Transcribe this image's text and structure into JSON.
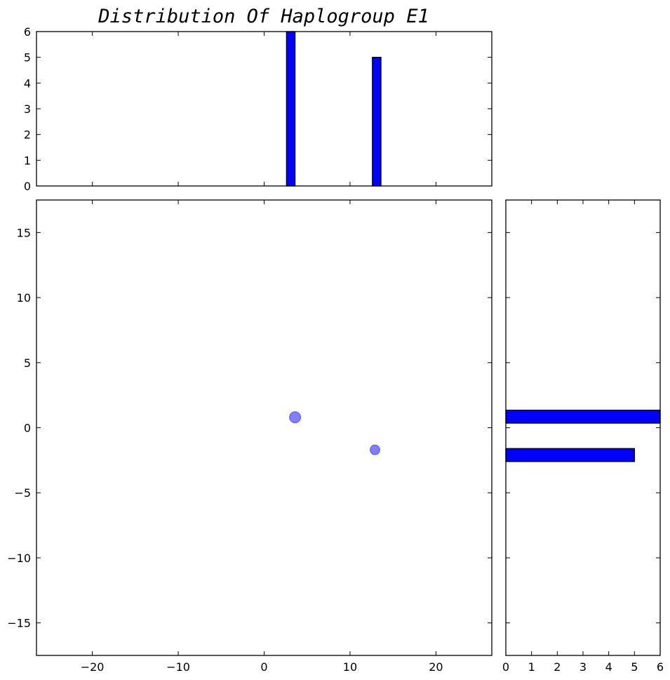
{
  "chart_data": {
    "type": "scatter",
    "title": "Distribution Of Haplogroup E1",
    "colors": {
      "bar_fill": "#0000ff",
      "bar_edge": "#000000",
      "point_fill": "#0000ff",
      "point_alpha": 0.5
    },
    "scatter": {
      "xlim": [
        -26.5,
        26.5
      ],
      "ylim": [
        -17.5,
        17.5
      ],
      "xticks": [
        -20,
        -10,
        0,
        10,
        20
      ],
      "yticks": [
        -15,
        -10,
        -5,
        0,
        5,
        10,
        15
      ],
      "xtick_labels": [
        "−20",
        "−10",
        "0",
        "10",
        "20"
      ],
      "ytick_labels": [
        "−15",
        "−10",
        "−5",
        "0",
        "5",
        "10",
        "15"
      ],
      "points": [
        {
          "x": 3.6,
          "y": 0.8,
          "size": 6
        },
        {
          "x": 12.9,
          "y": -1.7,
          "size": 5
        }
      ]
    },
    "x_histogram": {
      "orientation": "vertical",
      "ylim": [
        0,
        6
      ],
      "yticks": [
        0,
        1,
        2,
        3,
        4,
        5,
        6
      ],
      "ytick_labels": [
        "0",
        "1",
        "2",
        "3",
        "4",
        "5",
        "6"
      ],
      "bars": [
        {
          "x0": 2.6,
          "x1": 3.6,
          "count": 6
        },
        {
          "x0": 12.6,
          "x1": 13.6,
          "count": 5
        }
      ]
    },
    "y_histogram": {
      "orientation": "horizontal",
      "xlim": [
        0,
        6
      ],
      "xticks": [
        0,
        1,
        2,
        3,
        4,
        5,
        6
      ],
      "xtick_labels": [
        "0",
        "1",
        "2",
        "3",
        "4",
        "5",
        "6"
      ],
      "bars": [
        {
          "y0": 0.35,
          "y1": 1.35,
          "count": 6
        },
        {
          "y0": -2.6,
          "y1": -1.6,
          "count": 5
        }
      ]
    }
  }
}
